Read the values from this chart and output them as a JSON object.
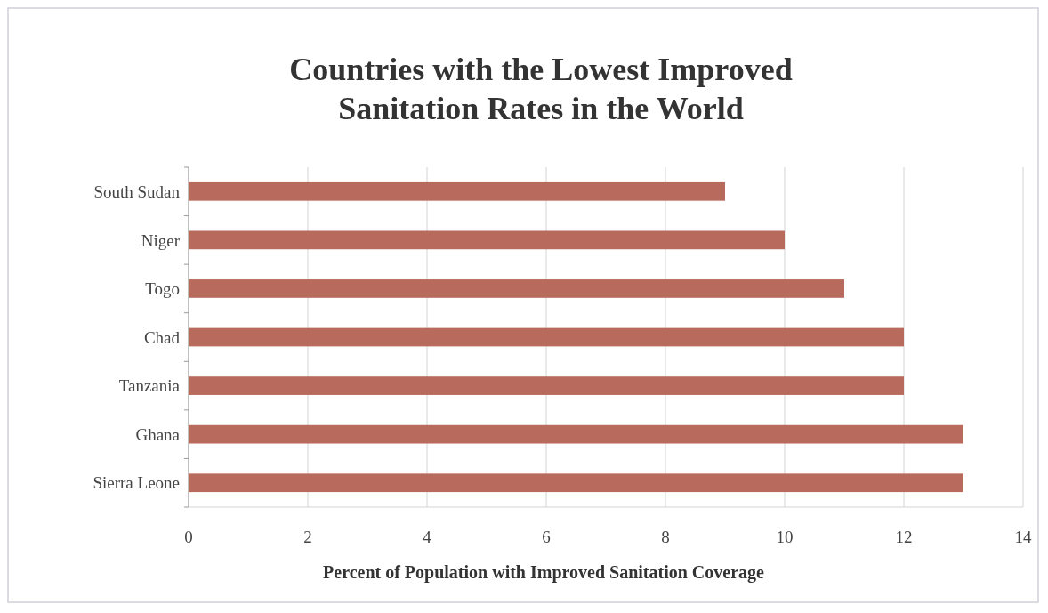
{
  "chart_data": {
    "type": "bar",
    "orientation": "horizontal",
    "title": "Countries with the Lowest Improved Sanitation Rates in the World",
    "xlabel": "Percent of Population with Improved Sanitation Coverage",
    "categories": [
      "South Sudan",
      "Niger",
      "Togo",
      "Chad",
      "Tanzania",
      "Ghana",
      "Sierra Leone"
    ],
    "values": [
      9,
      10,
      11,
      12,
      12,
      13,
      13
    ],
    "color": "#b86a5c",
    "xlim": [
      0,
      14
    ],
    "xticks": [
      0,
      2,
      4,
      6,
      8,
      10,
      12,
      14
    ],
    "grid": "x"
  }
}
